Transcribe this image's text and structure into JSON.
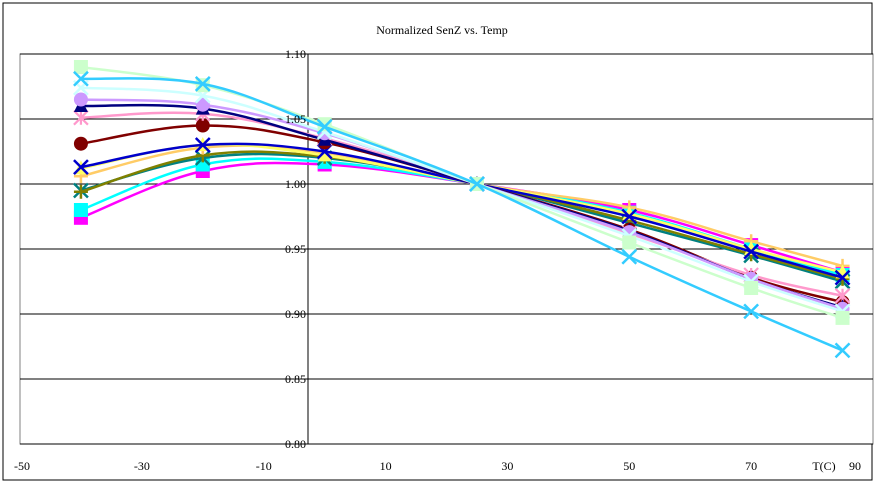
{
  "chart_data": {
    "type": "line",
    "title": "Normalized SenZ vs. Temp",
    "xlabel": "T(C)",
    "ylabel": "",
    "xlim": [
      -50,
      90
    ],
    "ylim": [
      0.8,
      1.1
    ],
    "x_ticks": [
      -50,
      -30,
      -10,
      10,
      30,
      50,
      70,
      90
    ],
    "x_tick_labels": [
      "-50",
      "-30",
      "-10",
      "10",
      "30",
      "50",
      "70",
      "90"
    ],
    "y_ticks": [
      0.8,
      0.85,
      0.9,
      0.95,
      1.0,
      1.05,
      1.1
    ],
    "y_tick_labels": [
      "0.80",
      "0.85",
      "0.90",
      "0.95",
      "1.00",
      "1.05",
      "1.10"
    ],
    "grid": "horizontal",
    "legend": "none",
    "x": [
      -40,
      -20,
      0,
      25,
      50,
      70,
      85
    ],
    "series": [
      {
        "color": "#ff00ff",
        "marker": "square",
        "values": [
          0.974,
          1.01,
          1.015,
          1.0,
          0.98,
          0.953,
          0.932
        ]
      },
      {
        "color": "#00ffff",
        "marker": "square",
        "values": [
          0.98,
          1.015,
          1.017,
          1.0,
          0.978,
          0.95,
          0.93
        ]
      },
      {
        "color": "#008080",
        "marker": "x",
        "values": [
          0.995,
          1.02,
          1.02,
          1.0,
          0.97,
          0.945,
          0.925
        ]
      },
      {
        "color": "#808000",
        "marker": "plus",
        "values": [
          0.994,
          1.022,
          1.021,
          1.0,
          0.972,
          0.946,
          0.927
        ]
      },
      {
        "color": "#ffcc66",
        "marker": "plus",
        "values": [
          1.006,
          1.028,
          1.024,
          1.0,
          0.982,
          0.956,
          0.937
        ]
      },
      {
        "color": "#ffff66",
        "marker": "triangle",
        "values": [
          1.012,
          1.03,
          1.022,
          1.0,
          0.977,
          0.95,
          0.932
        ]
      },
      {
        "color": "#0000cc",
        "marker": "x",
        "values": [
          1.013,
          1.03,
          1.025,
          1.0,
          0.975,
          0.948,
          0.928
        ]
      },
      {
        "color": "#800000",
        "marker": "circle",
        "values": [
          1.031,
          1.045,
          1.032,
          1.0,
          0.965,
          0.928,
          0.909
        ]
      },
      {
        "color": "#ff99cc",
        "marker": "asterisk",
        "values": [
          1.051,
          1.054,
          1.035,
          1.0,
          0.962,
          0.93,
          0.914
        ]
      },
      {
        "color": "#000080",
        "marker": "triangle",
        "values": [
          1.06,
          1.058,
          1.034,
          1.0,
          0.964,
          0.927,
          0.905
        ]
      },
      {
        "color": "#cc99ff",
        "marker": "circle",
        "values": [
          1.065,
          1.061,
          1.039,
          1.0,
          0.963,
          0.927,
          0.904
        ]
      },
      {
        "color": "#ccffff",
        "marker": "x",
        "values": [
          1.074,
          1.068,
          1.04,
          1.0,
          0.96,
          0.925,
          0.902
        ]
      },
      {
        "color": "#ccffcc",
        "marker": "square",
        "values": [
          1.09,
          1.076,
          1.046,
          1.0,
          0.955,
          0.92,
          0.897
        ]
      },
      {
        "color": "#33ccff",
        "marker": "x",
        "values": [
          1.081,
          1.077,
          1.044,
          1.0,
          0.944,
          0.902,
          0.872
        ]
      }
    ]
  }
}
